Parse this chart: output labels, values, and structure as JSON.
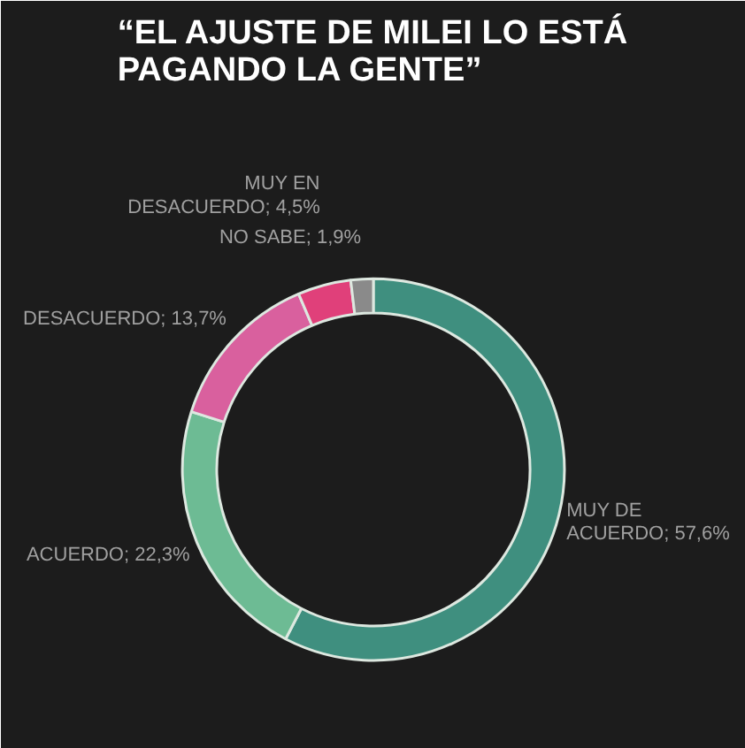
{
  "chart_data": {
    "type": "donut",
    "title": "“EL AJUSTE DE MILEI LO ESTÁ\nPAGANDO LA GENTE”",
    "categories": [
      "MUY DE ACUERDO",
      "ACUERDO",
      "DESACUERDO",
      "MUY EN DESACUERDO",
      "NO SABE"
    ],
    "values": [
      57.6,
      22.3,
      13.7,
      4.5,
      1.9
    ],
    "value_labels": [
      "57,6%",
      "22,3%",
      "13,7%",
      "4,5%",
      "1,9%"
    ],
    "colors": [
      "#3f8f7f",
      "#6dbb94",
      "#d9609e",
      "#e0407a",
      "#8a8a8a"
    ]
  }
}
